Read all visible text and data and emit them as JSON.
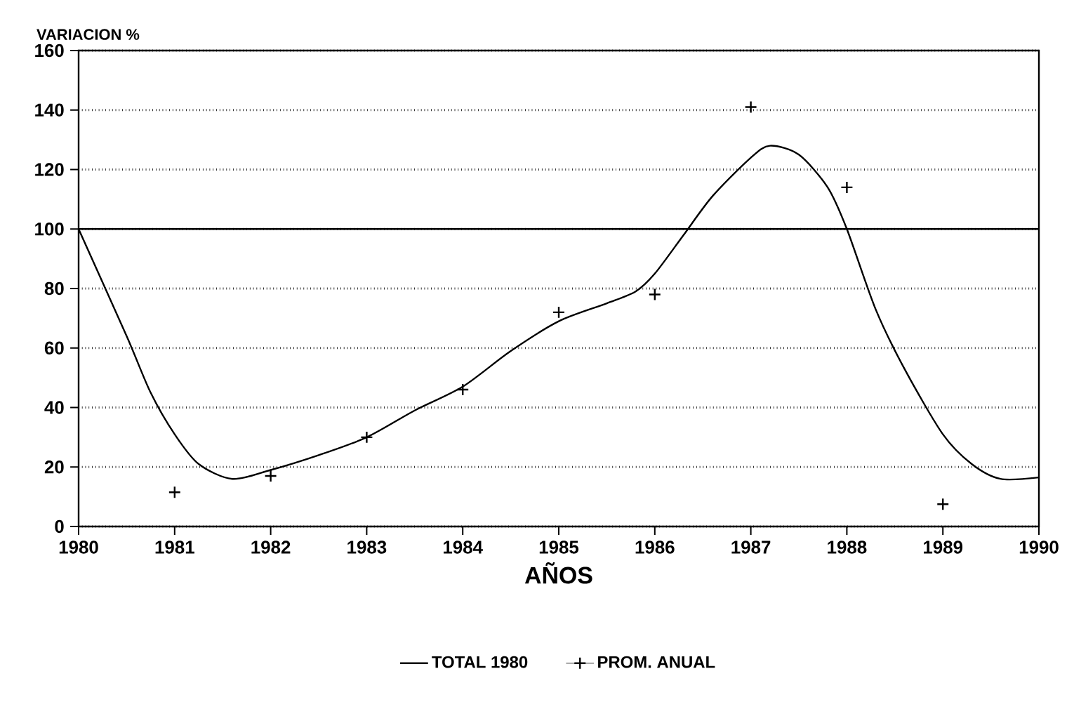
{
  "chart_data": {
    "type": "line",
    "ylabel": "VARIACION %",
    "xlabel": "AÑOS",
    "xlim": [
      1980,
      1990
    ],
    "xticks": [
      1980,
      1981,
      1982,
      1983,
      1984,
      1985,
      1986,
      1987,
      1988,
      1989,
      1990
    ],
    "ylim": [
      0,
      160
    ],
    "yticks": [
      0,
      20,
      40,
      60,
      80,
      100,
      120,
      140,
      160
    ],
    "grid": "y",
    "legend": "bottom",
    "ref_lines": [
      {
        "axis": "y",
        "value": 100,
        "color": "#000000"
      }
    ],
    "series": [
      {
        "name": "TOTAL 1980",
        "color": "#000000",
        "marker": "none",
        "x": [
          1980,
          1980.5,
          1980.75,
          1981,
          1981.25,
          1981.6,
          1982,
          1982.5,
          1983,
          1983.5,
          1984,
          1984.5,
          1985,
          1985.5,
          1985.8,
          1986,
          1986.3,
          1986.6,
          1987,
          1987.2,
          1987.5,
          1987.8,
          1988,
          1988.3,
          1988.6,
          1989,
          1989.3,
          1989.6,
          1990
        ],
        "values": [
          100,
          64,
          45,
          31,
          21,
          16,
          19,
          24,
          30,
          39,
          47,
          59,
          69,
          75,
          79,
          85,
          98,
          111,
          124,
          128,
          125,
          114,
          100,
          73,
          53,
          31,
          21,
          16,
          16.5
        ]
      },
      {
        "name": "PROM. ANUAL",
        "type": "scatter",
        "color": "#000000",
        "marker": "cross",
        "x": [
          1981,
          1982,
          1983,
          1984,
          1985,
          1986,
          1987,
          1988,
          1989
        ],
        "values": [
          11.5,
          17,
          30,
          46,
          72,
          78,
          141,
          114,
          7.5
        ]
      }
    ]
  }
}
